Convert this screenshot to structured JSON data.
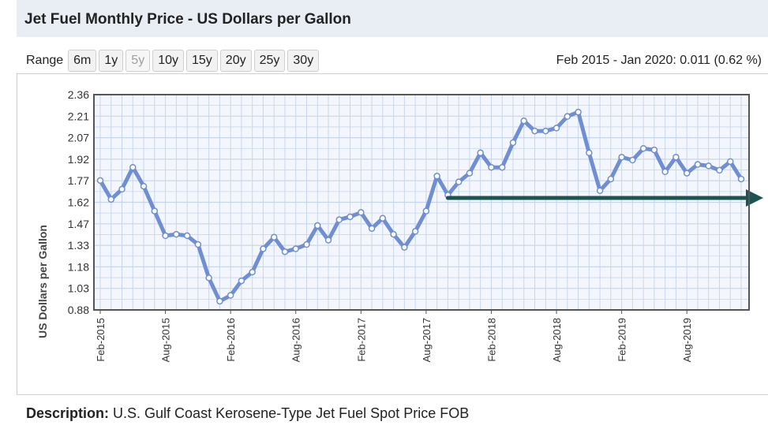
{
  "header": {
    "title": "Jet Fuel Monthly Price - US Dollars per Gallon"
  },
  "range": {
    "label": "Range",
    "buttons": [
      {
        "label": "6m",
        "disabled": false
      },
      {
        "label": "1y",
        "disabled": false
      },
      {
        "label": "5y",
        "disabled": true
      },
      {
        "label": "10y",
        "disabled": false
      },
      {
        "label": "15y",
        "disabled": false
      },
      {
        "label": "20y",
        "disabled": false
      },
      {
        "label": "25y",
        "disabled": false
      },
      {
        "label": "30y",
        "disabled": false
      }
    ]
  },
  "period_summary": "Feb 2015 - Jan 2020: 0.011 (0.62 %)",
  "description": {
    "label": "Description:",
    "text": "U.S. Gulf Coast Kerosene-Type Jet Fuel Spot Price FOB"
  },
  "colors": {
    "line": "#6f8fd2",
    "arrow": "#1c5454",
    "plot_border": "#555555",
    "grid": "#c8d6ec"
  },
  "chart_data": {
    "type": "line",
    "title": "",
    "xlabel": "",
    "ylabel": "US Dollars per Gallon",
    "ylim": [
      0.88,
      2.36
    ],
    "yticks": [
      "2.36",
      "2.21",
      "2.07",
      "1.92",
      "1.77",
      "1.62",
      "1.47",
      "1.33",
      "1.18",
      "1.03",
      "0.88"
    ],
    "x_tick_labels": [
      {
        "label": "Feb-2015",
        "index": 0
      },
      {
        "label": "Aug-2015",
        "index": 6
      },
      {
        "label": "Feb-2016",
        "index": 12
      },
      {
        "label": "Aug-2016",
        "index": 18
      },
      {
        "label": "Feb-2017",
        "index": 24
      },
      {
        "label": "Aug-2017",
        "index": 30
      },
      {
        "label": "Feb-2018",
        "index": 36
      },
      {
        "label": "Aug-2018",
        "index": 42
      },
      {
        "label": "Feb-2019",
        "index": 48
      },
      {
        "label": "Aug-2019",
        "index": 54
      }
    ],
    "grid": true,
    "series": [
      {
        "values": [
          1.77,
          1.64,
          1.71,
          1.86,
          1.73,
          1.56,
          1.39,
          1.4,
          1.39,
          1.33,
          1.1,
          0.94,
          0.98,
          1.08,
          1.14,
          1.3,
          1.38,
          1.28,
          1.3,
          1.33,
          1.46,
          1.36,
          1.5,
          1.52,
          1.55,
          1.44,
          1.51,
          1.4,
          1.31,
          1.42,
          1.56,
          1.8,
          1.67,
          1.76,
          1.82,
          1.96,
          1.86,
          1.86,
          2.03,
          2.18,
          2.11,
          2.11,
          2.13,
          2.21,
          2.24,
          1.96,
          1.7,
          1.78,
          1.93,
          1.91,
          1.99,
          1.98,
          1.83,
          1.93,
          1.82,
          1.88,
          1.87,
          1.84,
          1.9,
          1.78
        ]
      }
    ],
    "annotations": [
      {
        "type": "arrow",
        "from_index": 32,
        "from_value": 1.65,
        "to_index": 59,
        "to_value": 1.65
      }
    ]
  }
}
